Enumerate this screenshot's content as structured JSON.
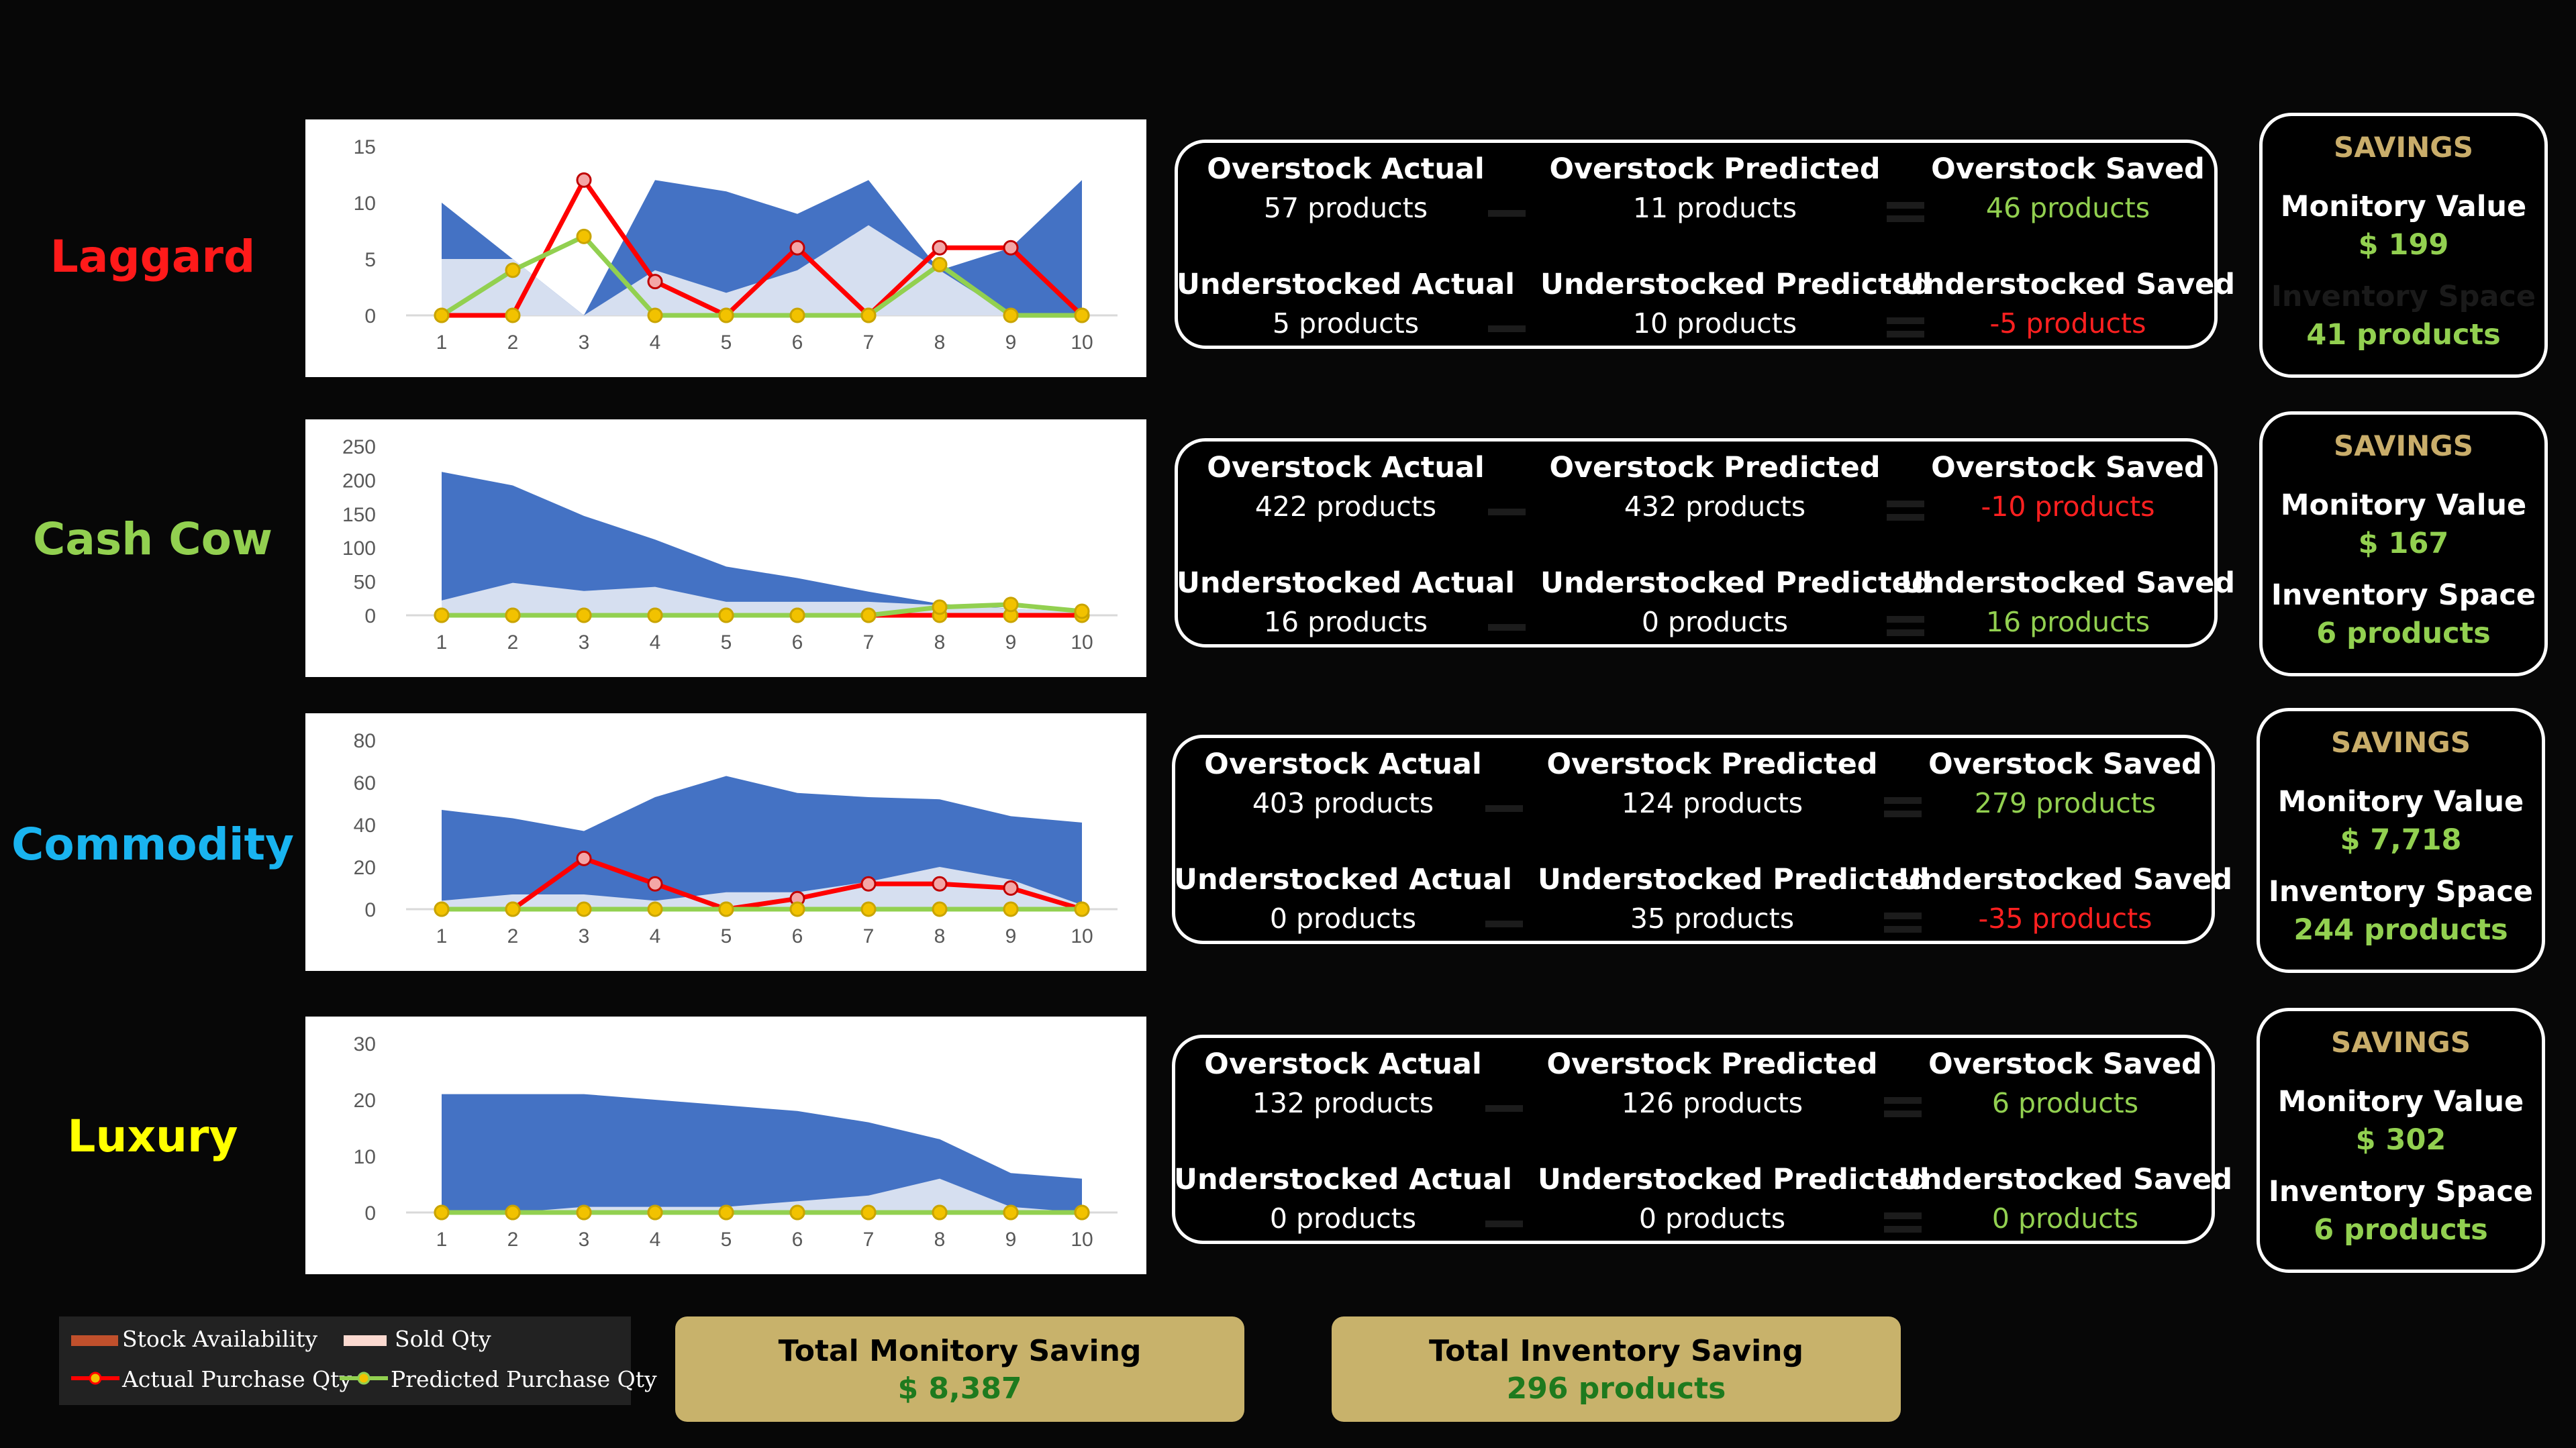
{
  "colors": {
    "stock_area": "#4472c4",
    "sold_area": "#d6dff0",
    "actual_line": "#ff0000",
    "predicted_line": "#92d050",
    "marker_fill": "#f2c200",
    "saving_positive": "#92d050",
    "saving_negative": "#ff2020",
    "savings_head": "#c9ad6a"
  },
  "segments": [
    {
      "name": "Laggard",
      "name_color": "#ff1a1a",
      "stats": {
        "overstock_actual_label": "Overstock Actual",
        "overstock_actual_value": "57 products",
        "overstock_predicted_label": "Overstock Predicted",
        "overstock_predicted_value": "11 products",
        "overstock_saved_label": "Overstock Saved",
        "overstock_saved_value": "46 products",
        "overstock_saved_sign": "positive",
        "understocked_actual_label": "Understocked Actual",
        "understocked_actual_value": "5 products",
        "understocked_predicted_label": "Understocked Predicted",
        "understocked_predicted_value": "10 products",
        "understocked_saved_label": "Understocked Saved",
        "understocked_saved_value": "-5 products",
        "understocked_saved_sign": "negative"
      },
      "savings": {
        "head": "SAVINGS",
        "monetary_label": "Monitory Value",
        "monetary_value": "$ 199",
        "inventory_label": "Inventory Space",
        "inventory_label_color": "#1a1a1a",
        "inventory_value": "41 products"
      }
    },
    {
      "name": "Cash Cow",
      "name_color": "#92d050",
      "stats": {
        "overstock_actual_label": "Overstock Actual",
        "overstock_actual_value": "422 products",
        "overstock_predicted_label": "Overstock Predicted",
        "overstock_predicted_value": "432 products",
        "overstock_saved_label": "Overstock Saved",
        "overstock_saved_value": "-10 products",
        "overstock_saved_sign": "negative",
        "understocked_actual_label": "Understocked Actual",
        "understocked_actual_value": "16 products",
        "understocked_predicted_label": "Understocked Predicted",
        "understocked_predicted_value": "0 products",
        "understocked_saved_label": "Understocked Saved",
        "understocked_saved_value": "16 products",
        "understocked_saved_sign": "positive"
      },
      "savings": {
        "head": "SAVINGS",
        "monetary_label": "Monitory Value",
        "monetary_value": "$ 167",
        "inventory_label": "Inventory Space",
        "inventory_label_color": "#ffffff",
        "inventory_value": "6 products"
      }
    },
    {
      "name": "Commodity",
      "name_color": "#19b4f0",
      "stats": {
        "overstock_actual_label": "Overstock Actual",
        "overstock_actual_value": "403 products",
        "overstock_predicted_label": "Overstock Predicted",
        "overstock_predicted_value": "124 products",
        "overstock_saved_label": "Overstock Saved",
        "overstock_saved_value": "279 products",
        "overstock_saved_sign": "positive",
        "understocked_actual_label": "Understocked Actual",
        "understocked_actual_value": "0 products",
        "understocked_predicted_label": "Understocked Predicted",
        "understocked_predicted_value": "35 products",
        "understocked_saved_label": "Understocked Saved",
        "understocked_saved_value": "-35 products",
        "understocked_saved_sign": "negative"
      },
      "savings": {
        "head": "SAVINGS",
        "monetary_label": "Monitory Value",
        "monetary_value": "$ 7,718",
        "inventory_label": "Inventory Space",
        "inventory_label_color": "#ffffff",
        "inventory_value": "244 products"
      }
    },
    {
      "name": "Luxury",
      "name_color": "#ffff00",
      "stats": {
        "overstock_actual_label": "Overstock Actual",
        "overstock_actual_value": "132 products",
        "overstock_predicted_label": "Overstock Predicted",
        "overstock_predicted_value": "126 products",
        "overstock_saved_label": "Overstock Saved",
        "overstock_saved_value": "6 products",
        "overstock_saved_sign": "positive",
        "understocked_actual_label": "Understocked Actual",
        "understocked_actual_value": "0 products",
        "understocked_predicted_label": "Understocked Predicted",
        "understocked_predicted_value": "0 products",
        "understocked_saved_label": "Understocked Saved",
        "understocked_saved_value": "0 products",
        "understocked_saved_sign": "positive"
      },
      "savings": {
        "head": "SAVINGS",
        "monetary_label": "Monitory Value",
        "monetary_value": "$ 302",
        "inventory_label": "Inventory Space",
        "inventory_label_color": "#ffffff",
        "inventory_value": "6 products"
      }
    }
  ],
  "legend": {
    "stock": "Stock Availability",
    "sold": "Sold Qty",
    "actual": "Actual Purchase Qty",
    "predicted": "Predicted Purchase Qty"
  },
  "totals": {
    "monetary_label": "Total Monitory Saving",
    "monetary_value": "$ 8,387",
    "inventory_label": "Total Inventory Saving",
    "inventory_value": "296 products"
  },
  "chart_data": [
    {
      "type": "area",
      "x": [
        1,
        2,
        3,
        4,
        5,
        6,
        7,
        8,
        9,
        10
      ],
      "yticks": [
        0,
        5,
        10,
        15
      ],
      "ylim": [
        0,
        15
      ],
      "series": [
        {
          "name": "Stock Availability",
          "type": "area",
          "values": [
            10,
            5,
            0,
            12,
            11,
            9,
            12,
            4,
            6,
            12
          ]
        },
        {
          "name": "Sold Qty",
          "type": "area",
          "values": [
            5,
            5,
            0,
            4,
            2,
            4,
            8,
            4,
            0,
            0
          ]
        },
        {
          "name": "Actual Purchase Qty",
          "type": "line",
          "values": [
            0,
            0,
            12,
            3,
            0,
            6,
            0,
            6,
            6,
            0
          ]
        },
        {
          "name": "Predicted Purchase Qty",
          "type": "line",
          "values": [
            0,
            4,
            7,
            0,
            0,
            0,
            0,
            4.5,
            0,
            0
          ]
        }
      ]
    },
    {
      "type": "area",
      "x": [
        1,
        2,
        3,
        4,
        5,
        6,
        7,
        8,
        9,
        10
      ],
      "yticks": [
        0,
        50,
        100,
        150,
        200,
        250
      ],
      "ylim": [
        0,
        250
      ],
      "series": [
        {
          "name": "Stock Availability",
          "type": "area",
          "values": [
            212,
            192,
            147,
            112,
            72,
            55,
            35,
            17,
            10,
            5
          ]
        },
        {
          "name": "Sold Qty",
          "type": "area",
          "values": [
            22,
            48,
            36,
            42,
            20,
            20,
            20,
            15,
            10,
            5
          ]
        },
        {
          "name": "Actual Purchase Qty",
          "type": "line",
          "values": [
            0,
            0,
            0,
            0,
            0,
            0,
            0,
            0,
            0,
            0
          ]
        },
        {
          "name": "Predicted Purchase Qty",
          "type": "line",
          "values": [
            0,
            0,
            0,
            0,
            0,
            0,
            0,
            12,
            16,
            6
          ]
        }
      ]
    },
    {
      "type": "area",
      "x": [
        1,
        2,
        3,
        4,
        5,
        6,
        7,
        8,
        9,
        10
      ],
      "yticks": [
        0,
        20,
        40,
        60,
        80
      ],
      "ylim": [
        0,
        80
      ],
      "series": [
        {
          "name": "Stock Availability",
          "type": "area",
          "values": [
            47,
            43,
            37,
            53,
            63,
            55,
            53,
            52,
            44,
            41
          ]
        },
        {
          "name": "Sold Qty",
          "type": "area",
          "values": [
            4,
            7,
            7,
            4,
            8,
            8,
            13,
            20,
            14,
            2
          ]
        },
        {
          "name": "Actual Purchase Qty",
          "type": "line",
          "values": [
            0,
            0,
            24,
            12,
            0,
            5,
            12,
            12,
            10,
            0
          ]
        },
        {
          "name": "Predicted Purchase Qty",
          "type": "line",
          "values": [
            0,
            0,
            0,
            0,
            0,
            0,
            0,
            0,
            0,
            0
          ]
        }
      ]
    },
    {
      "type": "area",
      "x": [
        1,
        2,
        3,
        4,
        5,
        6,
        7,
        8,
        9,
        10
      ],
      "yticks": [
        0,
        10,
        20,
        30
      ],
      "ylim": [
        0,
        30
      ],
      "series": [
        {
          "name": "Stock Availability",
          "type": "area",
          "values": [
            21,
            21,
            21,
            20,
            19,
            18,
            16,
            13,
            7,
            6
          ]
        },
        {
          "name": "Sold Qty",
          "type": "area",
          "values": [
            0,
            0,
            1,
            1,
            1,
            2,
            3,
            6,
            1,
            0
          ]
        },
        {
          "name": "Actual Purchase Qty",
          "type": "line",
          "values": [
            0,
            0,
            0,
            0,
            0,
            0,
            0,
            0,
            0,
            0
          ]
        },
        {
          "name": "Predicted Purchase Qty",
          "type": "line",
          "values": [
            0,
            0,
            0,
            0,
            0,
            0,
            0,
            0,
            0,
            0
          ]
        }
      ]
    }
  ]
}
